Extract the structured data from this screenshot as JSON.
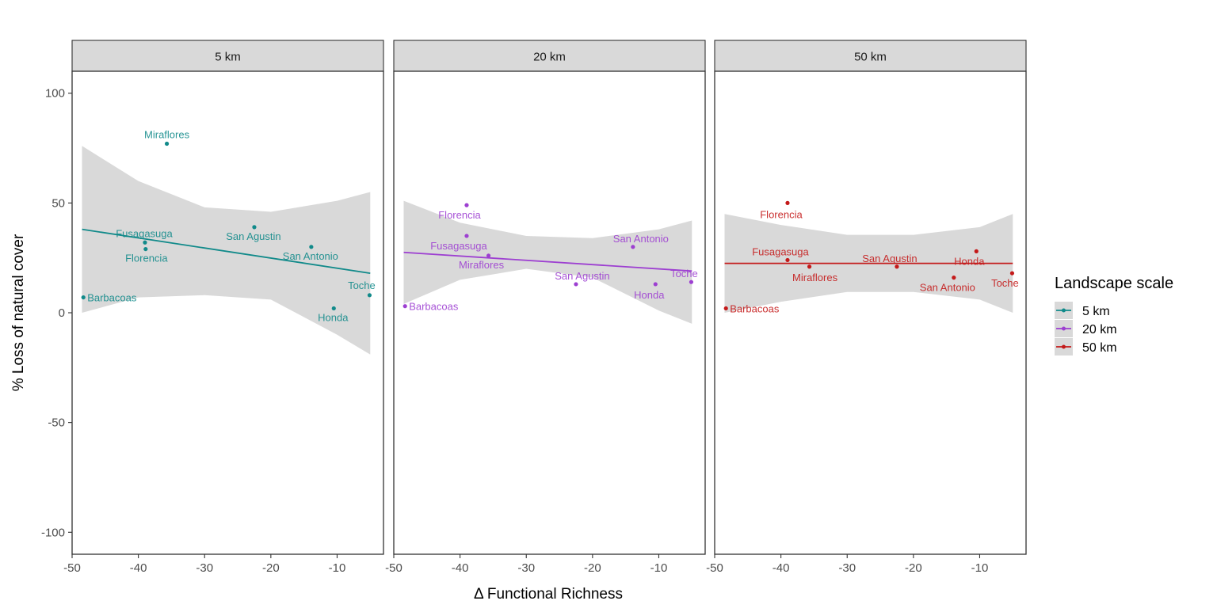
{
  "chart_data": {
    "type": "scatter",
    "xlabel": "Δ Functional Richness",
    "ylabel": "% Loss of natural cover",
    "xlim": [
      -50,
      -3
    ],
    "ylim": [
      -110,
      110
    ],
    "x_ticks": [
      -50,
      -40,
      -30,
      -20,
      -10
    ],
    "y_ticks": [
      -100,
      -50,
      0,
      50,
      100
    ],
    "grid": false,
    "legend": {
      "title": "Landscape scale",
      "placement": "right",
      "entries": [
        "5 km",
        "20 km",
        "50 km"
      ]
    },
    "panels": [
      {
        "strip": "5 km",
        "color": "#118a8a",
        "fit": {
          "x": [
            -48.5,
            -5
          ],
          "y": [
            38,
            18
          ]
        },
        "ci": {
          "x": [
            -48.5,
            -40,
            -30,
            -20,
            -10,
            -5
          ],
          "upper": [
            76,
            60,
            48,
            46,
            51,
            55
          ],
          "lower": [
            0,
            7,
            8,
            6,
            -10,
            -19
          ]
        },
        "points": [
          {
            "name": "Miraflores",
            "x": -35.7,
            "y": 77,
            "lx": 0,
            "ly": -7
          },
          {
            "name": "Fusagasuga",
            "x": -39.0,
            "y": 32,
            "lx": -1,
            "ly": -7
          },
          {
            "name": "Florencia",
            "x": -38.9,
            "y": 29,
            "lx": 1,
            "ly": 16
          },
          {
            "name": "San Agustin",
            "x": -22.5,
            "y": 39,
            "lx": -1,
            "ly": 16
          },
          {
            "name": "San Antonio",
            "x": -13.9,
            "y": 30,
            "lx": -1,
            "ly": 16
          },
          {
            "name": "Barbacoas",
            "x": -48.3,
            "y": 7,
            "lx": 5,
            "ly": 5
          },
          {
            "name": "Honda",
            "x": -10.5,
            "y": 2,
            "lx": -1,
            "ly": 16
          },
          {
            "name": "Toche",
            "x": -5.1,
            "y": 8,
            "lx": -10,
            "ly": -8
          }
        ]
      },
      {
        "strip": "20 km",
        "color": "#9d3fd1",
        "fit": {
          "x": [
            -48.5,
            -5
          ],
          "y": [
            27.5,
            19
          ]
        },
        "ci": {
          "x": [
            -48.5,
            -40,
            -30,
            -20,
            -10,
            -5
          ],
          "upper": [
            51,
            41,
            35,
            34,
            38,
            42
          ],
          "lower": [
            4,
            15,
            20,
            16,
            1,
            -5
          ]
        },
        "points": [
          {
            "name": "Florencia",
            "x": -39.0,
            "y": 49,
            "lx": -9,
            "ly": 17
          },
          {
            "name": "Fusagasuga",
            "x": -39.0,
            "y": 35,
            "lx": -10,
            "ly": 17
          },
          {
            "name": "Miraflores",
            "x": -35.7,
            "y": 26,
            "lx": -9,
            "ly": 16
          },
          {
            "name": "San Agustin",
            "x": -22.5,
            "y": 13,
            "lx": 8,
            "ly": -6
          },
          {
            "name": "San Antonio",
            "x": -13.9,
            "y": 30,
            "lx": 10,
            "ly": -6
          },
          {
            "name": "Barbacoas",
            "x": -48.3,
            "y": 3,
            "lx": 5,
            "ly": 5
          },
          {
            "name": "Honda",
            "x": -10.5,
            "y": 13,
            "lx": -8,
            "ly": 18
          },
          {
            "name": "Toche",
            "x": -5.1,
            "y": 14,
            "lx": -9,
            "ly": -6
          }
        ]
      },
      {
        "strip": "50 km",
        "color": "#c41a1a",
        "fit": {
          "x": [
            -48.5,
            -5
          ],
          "y": [
            22.5,
            22.5
          ]
        },
        "ci": {
          "x": [
            -48.5,
            -40,
            -30,
            -20,
            -10,
            -5
          ],
          "upper": [
            45,
            40,
            35.5,
            35.5,
            39,
            45
          ],
          "lower": [
            0,
            5,
            9.5,
            9.5,
            6,
            0
          ]
        },
        "points": [
          {
            "name": "Florencia",
            "x": -39.0,
            "y": 50,
            "lx": -8,
            "ly": 19
          },
          {
            "name": "Fusagasuga",
            "x": -39.0,
            "y": 24,
            "lx": -9,
            "ly": -6
          },
          {
            "name": "Miraflores",
            "x": -35.7,
            "y": 21,
            "lx": 7,
            "ly": 18
          },
          {
            "name": "San Agustin",
            "x": -22.5,
            "y": 21,
            "lx": -9,
            "ly": -6
          },
          {
            "name": "San Antonio",
            "x": -13.9,
            "y": 16,
            "lx": -8,
            "ly": 17
          },
          {
            "name": "Barbacoas",
            "x": -48.3,
            "y": 2,
            "lx": 5,
            "ly": 5
          },
          {
            "name": "Honda",
            "x": -10.5,
            "y": 28,
            "lx": -9,
            "ly": 17
          },
          {
            "name": "Toche",
            "x": -5.1,
            "y": 18,
            "lx": -9,
            "ly": 17
          }
        ]
      }
    ]
  }
}
